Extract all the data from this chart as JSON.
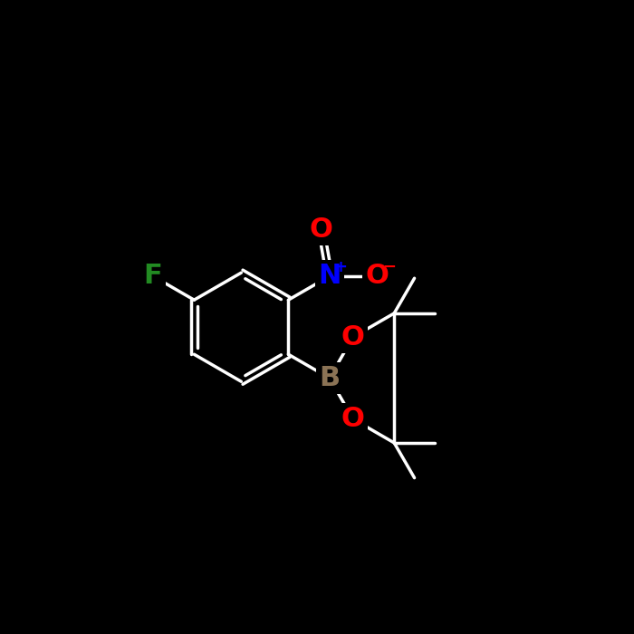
{
  "background_color": "#000000",
  "bond_color": "#ffffff",
  "bond_width": 2.5,
  "atom_colors": {
    "F": "#228B22",
    "N": "#0000FF",
    "O": "#FF0000",
    "B": "#8B7355",
    "C": "#ffffff"
  },
  "figsize": [
    7.0,
    7.0
  ],
  "dpi": 100,
  "xlim": [
    0,
    700
  ],
  "ylim": [
    0,
    700
  ]
}
